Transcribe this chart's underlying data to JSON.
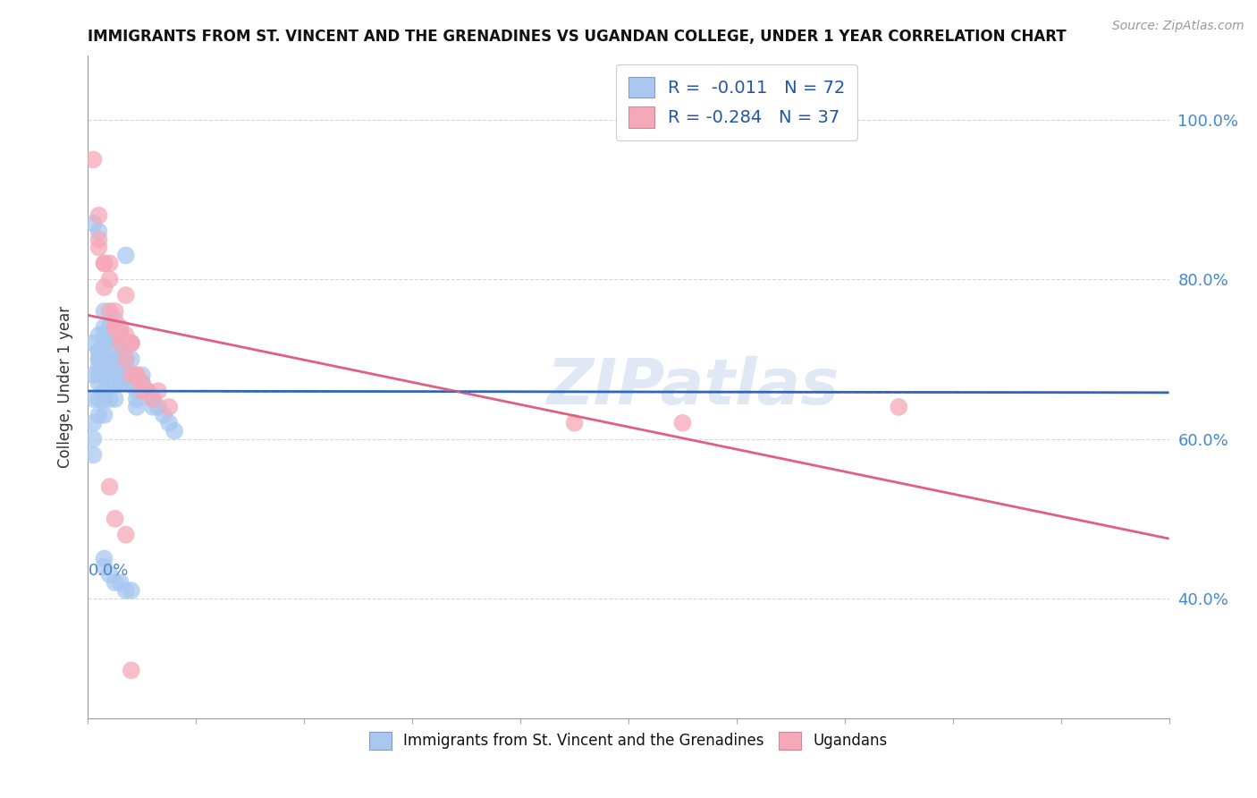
{
  "title": "IMMIGRANTS FROM ST. VINCENT AND THE GRENADINES VS UGANDAN COLLEGE, UNDER 1 YEAR CORRELATION CHART",
  "source": "Source: ZipAtlas.com",
  "ylabel": "College, Under 1 year",
  "ytick_values": [
    1.0,
    0.8,
    0.6,
    0.4
  ],
  "ytick_labels": [
    "100.0%",
    "80.0%",
    "60.0%",
    "40.0%"
  ],
  "xlim": [
    0.0,
    0.2
  ],
  "ylim": [
    0.25,
    1.08
  ],
  "blue_color": "#a8c8f0",
  "pink_color": "#f5a8b8",
  "blue_line_color": "#3366bb",
  "pink_line_color": "#e06080",
  "watermark": "ZIPatlas",
  "legend_label1": "Immigrants from St. Vincent and the Grenadines",
  "legend_label2": "Ugandans",
  "blue_scatter_x": [
    0.001,
    0.001,
    0.001,
    0.001,
    0.001,
    0.002,
    0.002,
    0.002,
    0.002,
    0.002,
    0.002,
    0.002,
    0.003,
    0.003,
    0.003,
    0.003,
    0.003,
    0.003,
    0.003,
    0.003,
    0.003,
    0.004,
    0.004,
    0.004,
    0.004,
    0.004,
    0.004,
    0.005,
    0.005,
    0.005,
    0.005,
    0.005,
    0.005,
    0.006,
    0.006,
    0.006,
    0.006,
    0.006,
    0.007,
    0.007,
    0.007,
    0.007,
    0.007,
    0.008,
    0.008,
    0.008,
    0.008,
    0.009,
    0.009,
    0.009,
    0.01,
    0.01,
    0.011,
    0.012,
    0.012,
    0.013,
    0.014,
    0.015,
    0.016,
    0.001,
    0.002,
    0.003,
    0.003,
    0.004,
    0.005,
    0.006,
    0.007,
    0.008,
    0.001,
    0.002,
    0.002,
    0.002
  ],
  "blue_scatter_y": [
    0.68,
    0.65,
    0.62,
    0.6,
    0.58,
    0.73,
    0.71,
    0.7,
    0.68,
    0.67,
    0.65,
    0.63,
    0.76,
    0.74,
    0.73,
    0.72,
    0.7,
    0.68,
    0.66,
    0.65,
    0.63,
    0.74,
    0.73,
    0.71,
    0.69,
    0.67,
    0.65,
    0.75,
    0.73,
    0.71,
    0.69,
    0.67,
    0.65,
    0.73,
    0.72,
    0.7,
    0.68,
    0.67,
    0.83,
    0.72,
    0.7,
    0.69,
    0.67,
    0.72,
    0.7,
    0.68,
    0.67,
    0.66,
    0.65,
    0.64,
    0.68,
    0.67,
    0.66,
    0.65,
    0.64,
    0.64,
    0.63,
    0.62,
    0.61,
    0.87,
    0.86,
    0.45,
    0.44,
    0.43,
    0.42,
    0.42,
    0.41,
    0.41,
    0.72,
    0.71,
    0.7,
    0.69
  ],
  "pink_scatter_x": [
    0.001,
    0.002,
    0.002,
    0.003,
    0.003,
    0.004,
    0.004,
    0.005,
    0.005,
    0.006,
    0.006,
    0.007,
    0.007,
    0.008,
    0.008,
    0.009,
    0.01,
    0.011,
    0.012,
    0.013,
    0.015,
    0.002,
    0.003,
    0.004,
    0.005,
    0.006,
    0.007,
    0.008,
    0.009,
    0.01,
    0.09,
    0.11,
    0.15,
    0.004,
    0.005,
    0.007,
    0.008
  ],
  "pink_scatter_y": [
    0.95,
    0.88,
    0.84,
    0.82,
    0.79,
    0.82,
    0.76,
    0.76,
    0.74,
    0.74,
    0.72,
    0.78,
    0.7,
    0.72,
    0.68,
    0.68,
    0.67,
    0.66,
    0.65,
    0.66,
    0.64,
    0.85,
    0.82,
    0.8,
    0.74,
    0.73,
    0.73,
    0.72,
    0.68,
    0.66,
    0.62,
    0.62,
    0.64,
    0.54,
    0.5,
    0.48,
    0.31
  ],
  "blue_trend_x0": 0.0,
  "blue_trend_x1": 0.2,
  "blue_trend_y0": 0.66,
  "blue_trend_y1": 0.658,
  "pink_trend_x0": 0.0,
  "pink_trend_x1": 0.2,
  "pink_trend_y0": 0.755,
  "pink_trend_y1": 0.475
}
